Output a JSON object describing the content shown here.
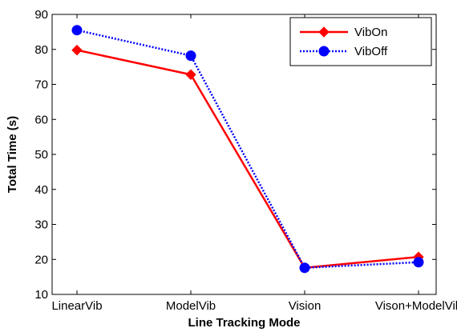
{
  "chart_data": {
    "type": "line",
    "xlabel": "Line Tracking Mode",
    "ylabel": "Total Time (s)",
    "categories": [
      "LinearVib",
      "ModelVib",
      "Vision",
      "Vison+ModelVib"
    ],
    "ylim": [
      10,
      90
    ],
    "yticks": [
      10,
      20,
      30,
      40,
      50,
      60,
      70,
      80,
      90
    ],
    "grid": false,
    "legend_position": "top-right",
    "series": [
      {
        "name": "VibOn",
        "values": [
          79.8,
          72.8,
          17.6,
          20.7
        ],
        "color": "#ff0000",
        "line_style": "solid",
        "marker": "diamond"
      },
      {
        "name": "VibOff",
        "values": [
          85.5,
          78.2,
          17.6,
          19.2
        ],
        "color": "#0000ff",
        "line_style": "dotted",
        "marker": "circle"
      }
    ]
  }
}
